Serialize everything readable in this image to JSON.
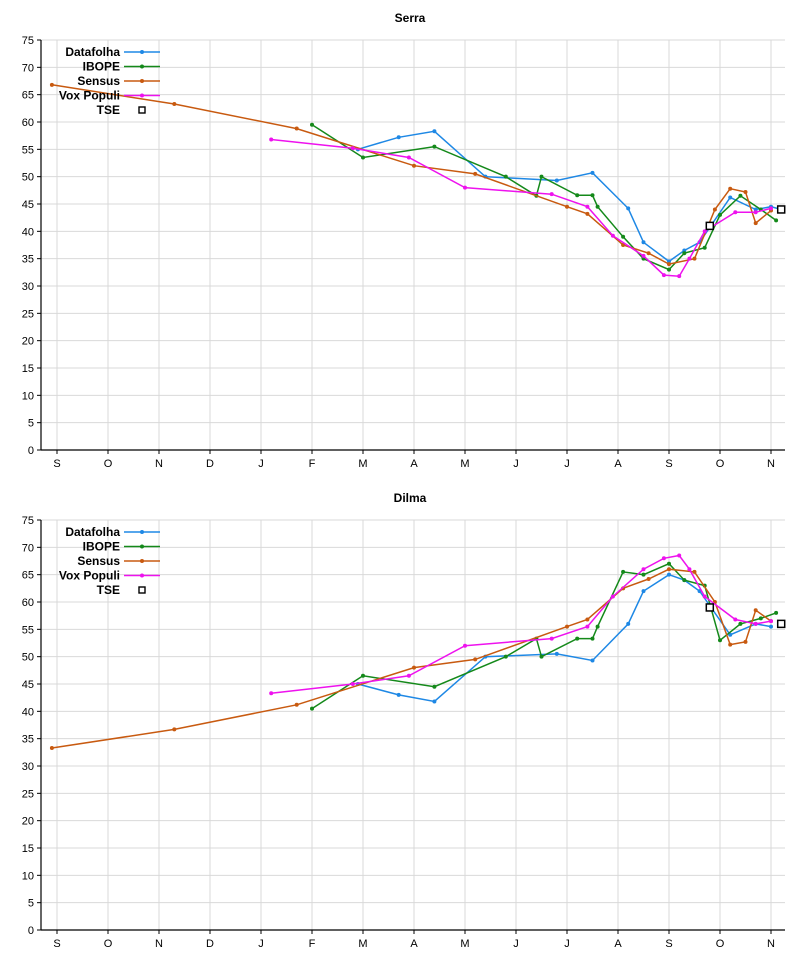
{
  "months": [
    "S",
    "O",
    "N",
    "D",
    "J",
    "F",
    "M",
    "A",
    "M",
    "J",
    "J",
    "A",
    "S",
    "O",
    "N"
  ],
  "legend_labels": [
    "Datafolha",
    "IBOPE",
    "Sensus",
    "Vox Populi",
    "TSE"
  ],
  "colors": {
    "Datafolha": "#1e88e5",
    "IBOPE": "#14891a",
    "Sensus": "#c85a10",
    "Vox Populi": "#ee12ee",
    "TSE": "#000000"
  },
  "chart_data": [
    {
      "type": "line",
      "title": "Serra",
      "xlabel": "",
      "ylabel": "",
      "ylim": [
        0,
        75
      ],
      "yticks": [
        0,
        5,
        10,
        15,
        20,
        25,
        30,
        35,
        40,
        45,
        50,
        55,
        60,
        65,
        70,
        75
      ],
      "x_unit": "month index from S (0) to N (14)",
      "grid": true,
      "legend": "top-left",
      "series": [
        {
          "name": "Datafolha",
          "points": [
            [
              5.9,
              55
            ],
            [
              6.7,
              57.2
            ],
            [
              7.4,
              58.3
            ],
            [
              8.4,
              50
            ],
            [
              9.8,
              49.3
            ],
            [
              10.5,
              50.7
            ],
            [
              11.2,
              44.2
            ],
            [
              11.5,
              38
            ],
            [
              12.0,
              34.5
            ],
            [
              12.3,
              36.5
            ],
            [
              12.6,
              38
            ],
            [
              13.2,
              46.2
            ],
            [
              13.7,
              44
            ],
            [
              14.0,
              44.5
            ],
            [
              14.2,
              44
            ]
          ]
        },
        {
          "name": "IBOPE",
          "points": [
            [
              5.0,
              59.5
            ],
            [
              6.0,
              53.5
            ],
            [
              7.4,
              55.5
            ],
            [
              8.8,
              50
            ],
            [
              9.4,
              46.5
            ],
            [
              9.5,
              50
            ],
            [
              10.2,
              46.6
            ],
            [
              10.5,
              46.6
            ],
            [
              10.6,
              44.5
            ],
            [
              11.1,
              39
            ],
            [
              11.5,
              35
            ],
            [
              12.0,
              33
            ],
            [
              12.3,
              36
            ],
            [
              12.7,
              37
            ],
            [
              13.0,
              43
            ],
            [
              13.4,
              46.5
            ],
            [
              13.8,
              44
            ],
            [
              14.1,
              42
            ]
          ]
        },
        {
          "name": "Sensus",
          "points": [
            [
              -0.1,
              66.8
            ],
            [
              2.3,
              63.3
            ],
            [
              4.7,
              58.8
            ],
            [
              7.0,
              52
            ],
            [
              8.2,
              50.5
            ],
            [
              10.0,
              44.5
            ],
            [
              10.4,
              43.2
            ],
            [
              11.1,
              37.5
            ],
            [
              11.6,
              36
            ],
            [
              12.0,
              34
            ],
            [
              12.5,
              35
            ],
            [
              12.9,
              44
            ],
            [
              13.2,
              47.8
            ],
            [
              13.5,
              47.2
            ],
            [
              13.7,
              41.5
            ],
            [
              14.0,
              43.8
            ]
          ]
        },
        {
          "name": "Vox Populi",
          "points": [
            [
              4.2,
              56.8
            ],
            [
              5.8,
              55.2
            ],
            [
              6.9,
              53.5
            ],
            [
              8.0,
              48
            ],
            [
              9.7,
              46.8
            ],
            [
              10.4,
              44.5
            ],
            [
              10.9,
              39.2
            ],
            [
              11.5,
              35.5
            ],
            [
              11.9,
              32
            ],
            [
              12.2,
              31.8
            ],
            [
              12.4,
              35
            ],
            [
              12.7,
              40
            ],
            [
              13.3,
              43.5
            ],
            [
              13.7,
              43.5
            ],
            [
              14.0,
              44.2
            ]
          ]
        },
        {
          "name": "TSE",
          "points": [
            [
              12.8,
              41
            ],
            [
              14.2,
              44
            ]
          ]
        }
      ]
    },
    {
      "type": "line",
      "title": "Dilma",
      "xlabel": "",
      "ylabel": "",
      "ylim": [
        0,
        75
      ],
      "yticks": [
        0,
        5,
        10,
        15,
        20,
        25,
        30,
        35,
        40,
        45,
        50,
        55,
        60,
        65,
        70,
        75
      ],
      "x_unit": "month index from S (0) to N (14)",
      "grid": true,
      "legend": "top-left",
      "series": [
        {
          "name": "Datafolha",
          "points": [
            [
              5.9,
              45
            ],
            [
              6.7,
              43
            ],
            [
              7.4,
              41.8
            ],
            [
              8.4,
              50
            ],
            [
              9.8,
              50.5
            ],
            [
              10.5,
              49.3
            ],
            [
              11.2,
              56
            ],
            [
              11.5,
              62
            ],
            [
              12.0,
              65
            ],
            [
              12.3,
              64
            ],
            [
              12.6,
              62
            ],
            [
              13.2,
              54
            ],
            [
              13.7,
              56
            ],
            [
              14.0,
              55.5
            ]
          ]
        },
        {
          "name": "IBOPE",
          "points": [
            [
              5.0,
              40.5
            ],
            [
              6.0,
              46.5
            ],
            [
              7.4,
              44.5
            ],
            [
              8.8,
              50
            ],
            [
              9.4,
              53.3
            ],
            [
              9.5,
              50
            ],
            [
              10.2,
              53.3
            ],
            [
              10.5,
              53.3
            ],
            [
              10.6,
              55.5
            ],
            [
              11.1,
              65.5
            ],
            [
              11.5,
              65
            ],
            [
              12.0,
              67
            ],
            [
              12.3,
              64
            ],
            [
              12.7,
              63
            ],
            [
              13.0,
              53
            ],
            [
              13.4,
              56
            ],
            [
              13.8,
              57
            ],
            [
              14.1,
              58
            ]
          ]
        },
        {
          "name": "Sensus",
          "points": [
            [
              -0.1,
              33.3
            ],
            [
              2.3,
              36.7
            ],
            [
              4.7,
              41.2
            ],
            [
              7.0,
              48
            ],
            [
              8.2,
              49.5
            ],
            [
              10.0,
              55.5
            ],
            [
              10.4,
              56.8
            ],
            [
              11.1,
              62.5
            ],
            [
              11.6,
              64.2
            ],
            [
              12.0,
              66
            ],
            [
              12.5,
              65.5
            ],
            [
              12.9,
              60
            ],
            [
              13.2,
              52.2
            ],
            [
              13.5,
              52.7
            ],
            [
              13.7,
              58.5
            ],
            [
              14.0,
              56.5
            ]
          ]
        },
        {
          "name": "Vox Populi",
          "points": [
            [
              4.2,
              43.3
            ],
            [
              5.8,
              45
            ],
            [
              6.9,
              46.5
            ],
            [
              8.0,
              52
            ],
            [
              9.7,
              53.3
            ],
            [
              10.4,
              55.5
            ],
            [
              10.9,
              61
            ],
            [
              11.5,
              66
            ],
            [
              11.9,
              68
            ],
            [
              12.2,
              68.5
            ],
            [
              12.4,
              66
            ],
            [
              12.7,
              61
            ],
            [
              13.3,
              56.8
            ],
            [
              13.7,
              56
            ],
            [
              14.0,
              56.5
            ]
          ]
        },
        {
          "name": "TSE",
          "points": [
            [
              12.8,
              59
            ],
            [
              14.2,
              56
            ]
          ]
        }
      ]
    }
  ]
}
